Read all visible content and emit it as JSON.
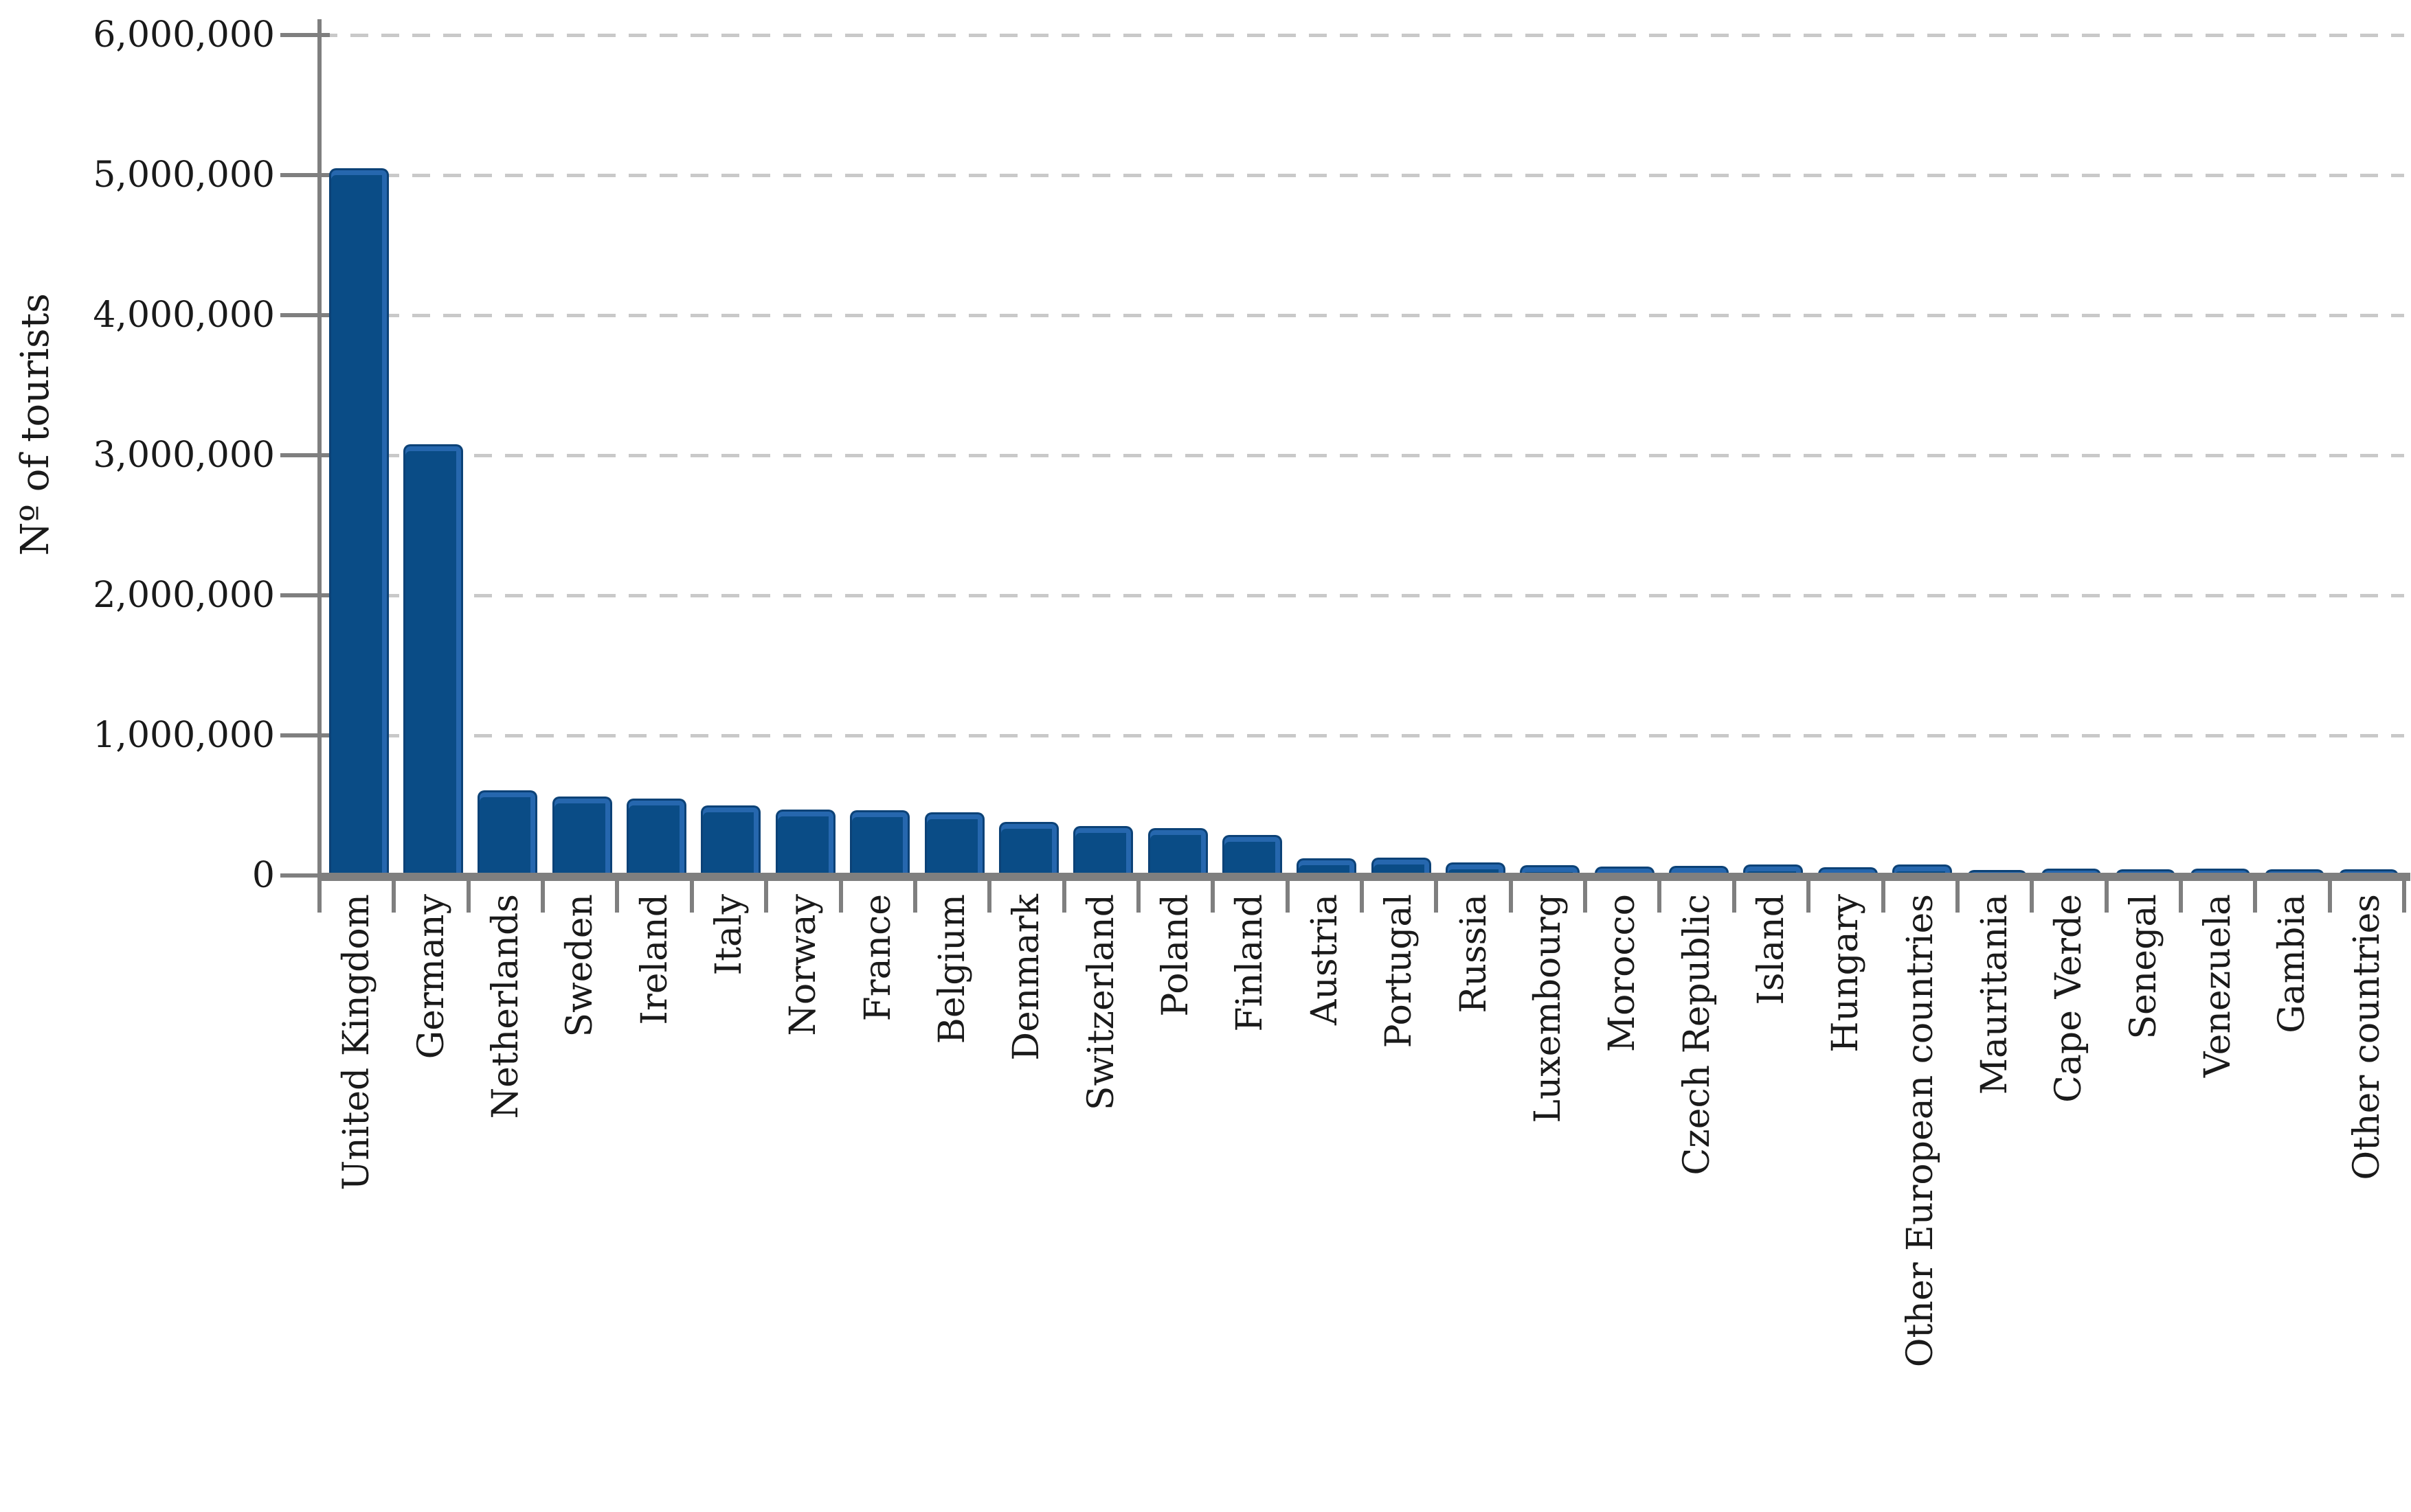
{
  "chart_data": {
    "type": "bar",
    "title": "",
    "xlabel": "",
    "ylabel": "Nº of tourists",
    "ylim": [
      0,
      6000000
    ],
    "ytick_interval": 1000000,
    "ytick_labels": [
      "0",
      "1,000,000",
      "2,000,000",
      "3,000,000",
      "4,000,000",
      "5,000,000",
      "6,000,000"
    ],
    "grid": "horizontal dashed gridlines at each 1,000,000",
    "legend": "none",
    "categories": [
      "United Kingdom",
      "Germany",
      "Netherlands",
      "Sweden",
      "Ireland",
      "Italy",
      "Norway",
      "France",
      "Belgium",
      "Denmark",
      "Switzerland",
      "Poland",
      "Finland",
      "Austria",
      "Portugal",
      "Russia",
      "Luxembourg",
      "Morocco",
      "Czech Republic",
      "Island",
      "Hungary",
      "Other European countries",
      "Mauritania",
      "Cape Verde",
      "Senegal",
      "Venezuela",
      "Gambia",
      "Other countries"
    ],
    "values": [
      5050000,
      3080000,
      610000,
      565000,
      550000,
      500000,
      470000,
      465000,
      450000,
      380000,
      355000,
      340000,
      290000,
      123000,
      127000,
      95000,
      72000,
      66000,
      71000,
      76000,
      57000,
      79000,
      41000,
      47000,
      45000,
      50000,
      45000,
      45000
    ],
    "colors": {
      "bar_fill": "#0A4C86",
      "bar_edge": "#0C4277",
      "bar_bevel": "#2667AE",
      "axis": "#7F7F7F",
      "gridline": "#C9C9C9",
      "text": "#1A1A1A",
      "background": "#FFFFFF"
    }
  }
}
